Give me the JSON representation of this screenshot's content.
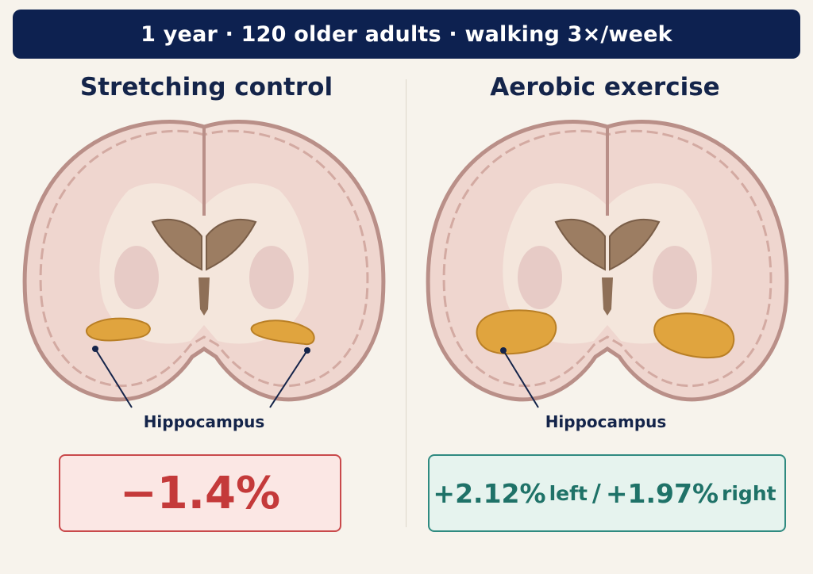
{
  "header": {
    "banner_text": "1 year · 120 older adults · walking 3×/week"
  },
  "panels": {
    "left": {
      "title": "Stretching control",
      "hippocampus_label": "Hippocampus",
      "result": "−1.4%"
    },
    "right": {
      "title": "Aerobic exercise",
      "hippocampus_label": "Hippocampus",
      "result_left_value": "+2.12%",
      "result_left_word": "left",
      "result_separator": "/",
      "result_right_value": "+1.97%",
      "result_right_word": "right"
    }
  },
  "colors": {
    "banner": "#0d2150",
    "title_text": "#14244a",
    "brain_tissue": "#efd6cf",
    "cortex_edge": "#b98f88",
    "hippocampus": "#e0a43e",
    "decrease_accent": "#c9494b",
    "increase_accent": "#2f8a80"
  }
}
